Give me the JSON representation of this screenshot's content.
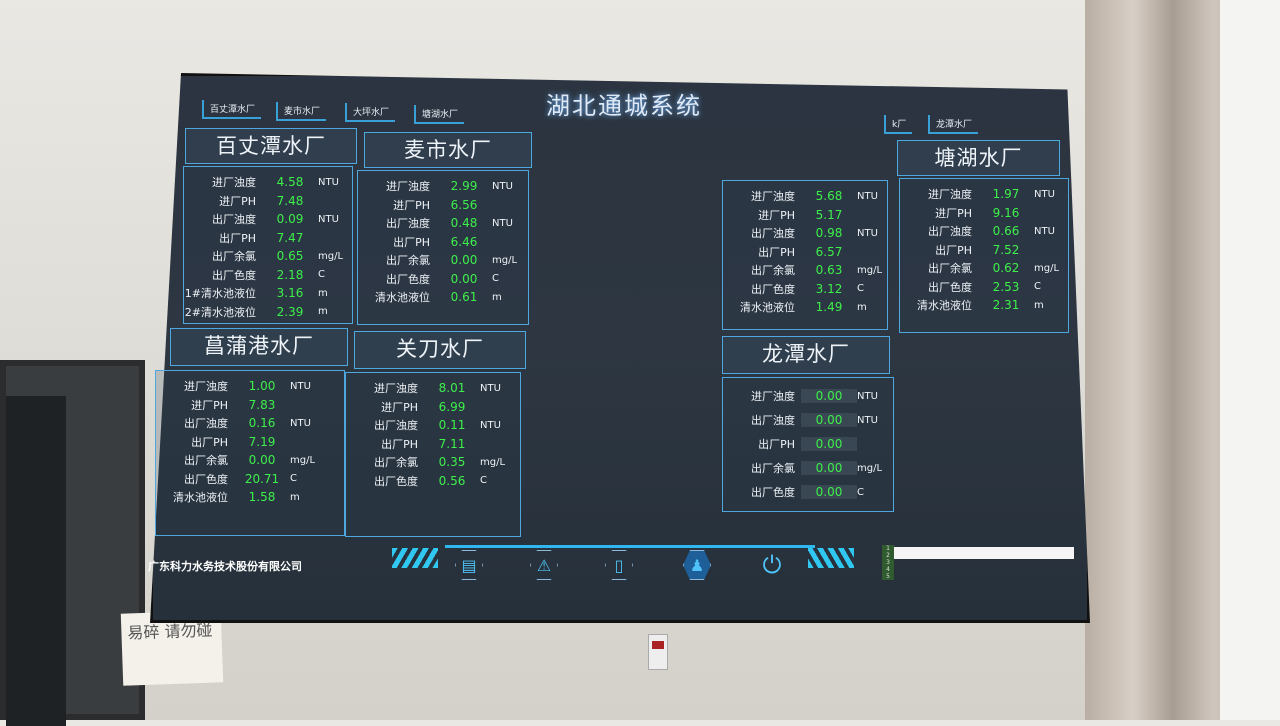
{
  "app_title": "湖北通城系统",
  "tabs_left": [
    "百丈潭水厂",
    "麦市水厂",
    "大坪水厂",
    "塘湖水厂"
  ],
  "tabs_right": [
    "k厂",
    "龙潭水厂"
  ],
  "colors": {
    "value": "#3df04a",
    "border": "#4ea7de",
    "background": "#2b3440"
  },
  "plants": [
    {
      "name": "百丈潭水厂",
      "rows": [
        [
          "进厂浊度",
          "4.58",
          "NTU"
        ],
        [
          "进厂PH",
          "7.48",
          ""
        ],
        [
          "出厂浊度",
          "0.09",
          "NTU"
        ],
        [
          "出厂PH",
          "7.47",
          ""
        ],
        [
          "出厂余氯",
          "0.65",
          "mg/L"
        ],
        [
          "出厂色度",
          "2.18",
          "C"
        ],
        [
          "1#清水池液位",
          "3.16",
          "m"
        ],
        [
          "2#清水池液位",
          "2.39",
          "m"
        ]
      ]
    },
    {
      "name": "麦市水厂",
      "rows": [
        [
          "进厂浊度",
          "2.99",
          "NTU"
        ],
        [
          "进厂PH",
          "6.56",
          ""
        ],
        [
          "出厂浊度",
          "0.48",
          "NTU"
        ],
        [
          "出厂PH",
          "6.46",
          ""
        ],
        [
          "出厂余氯",
          "0.00",
          "mg/L"
        ],
        [
          "出厂色度",
          "0.00",
          "C"
        ],
        [
          "清水池液位",
          "0.61",
          "m"
        ]
      ]
    },
    {
      "name": "",
      "rows": [
        [
          "进厂浊度",
          "5.68",
          "NTU"
        ],
        [
          "进厂PH",
          "5.17",
          ""
        ],
        [
          "出厂浊度",
          "0.98",
          "NTU"
        ],
        [
          "出厂PH",
          "6.57",
          ""
        ],
        [
          "出厂余氯",
          "0.63",
          "mg/L"
        ],
        [
          "出厂色度",
          "3.12",
          "C"
        ],
        [
          "清水池液位",
          "1.49",
          "m"
        ]
      ]
    },
    {
      "name": "塘湖水厂",
      "rows": [
        [
          "进厂浊度",
          "1.97",
          "NTU"
        ],
        [
          "进厂PH",
          "9.16",
          ""
        ],
        [
          "出厂浊度",
          "0.66",
          "NTU"
        ],
        [
          "出厂PH",
          "7.52",
          ""
        ],
        [
          "出厂余氯",
          "0.62",
          "mg/L"
        ],
        [
          "出厂色度",
          "2.53",
          "C"
        ],
        [
          "清水池液位",
          "2.31",
          "m"
        ]
      ]
    },
    {
      "name": "菖蒲港水厂",
      "rows": [
        [
          "进厂浊度",
          "1.00",
          "NTU"
        ],
        [
          "进厂PH",
          "7.83",
          ""
        ],
        [
          "出厂浊度",
          "0.16",
          "NTU"
        ],
        [
          "出厂PH",
          "7.19",
          ""
        ],
        [
          "出厂余氯",
          "0.00",
          "mg/L"
        ],
        [
          "出厂色度",
          "20.71",
          "C"
        ],
        [
          "清水池液位",
          "1.58",
          "m"
        ]
      ]
    },
    {
      "name": "关刀水厂",
      "rows": [
        [
          "进厂浊度",
          "8.01",
          "NTU"
        ],
        [
          "进厂PH",
          "6.99",
          ""
        ],
        [
          "出厂浊度",
          "0.11",
          "NTU"
        ],
        [
          "出厂PH",
          "7.11",
          ""
        ],
        [
          "出厂余氯",
          "0.35",
          "mg/L"
        ],
        [
          "出厂色度",
          "0.56",
          "C"
        ]
      ]
    },
    {
      "name": "龙潭水厂",
      "warning": true,
      "rows": [
        [
          "进厂浊度",
          "0.00",
          "NTU"
        ],
        [
          "出厂浊度",
          "0.00",
          "NTU"
        ],
        [
          "出厂PH",
          "0.00",
          ""
        ],
        [
          "出厂余氯",
          "0.00",
          "mg/L"
        ],
        [
          "出厂色度",
          "0.00",
          "C"
        ]
      ]
    }
  ],
  "footer": {
    "company": "广东科力水务技术股份有限公司",
    "nav_icons": [
      "report-icon",
      "alarm-icon",
      "document-icon",
      "user-icon",
      "power-icon"
    ],
    "mini_table_rows": [
      "1",
      "2",
      "3",
      "4",
      "5"
    ]
  },
  "note": "易碎 请勿碰"
}
